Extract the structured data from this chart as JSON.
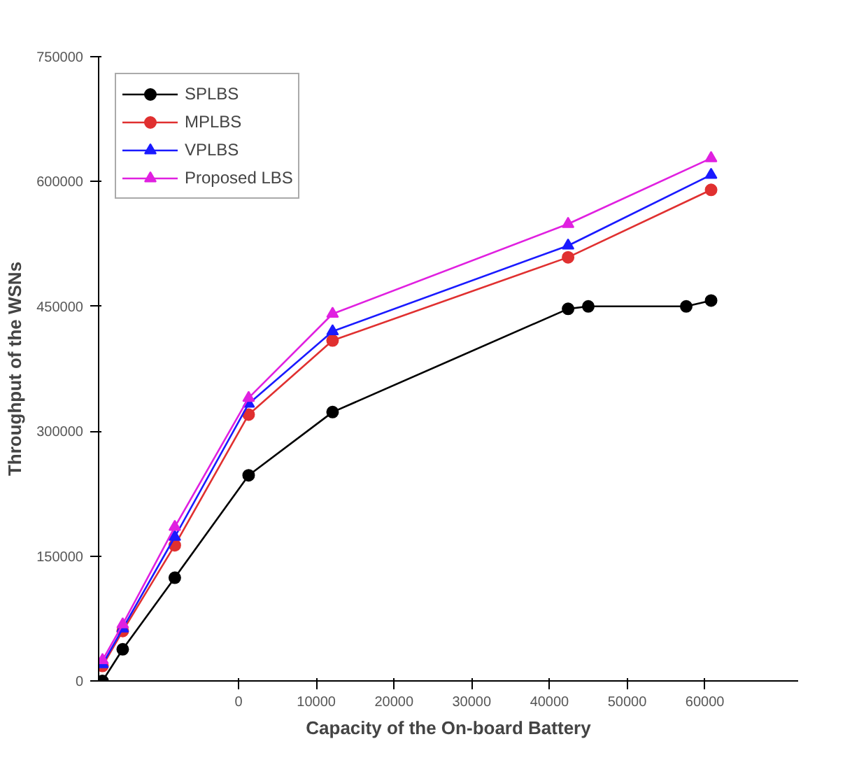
{
  "chart_data": {
    "type": "line",
    "xlabel": "Capacity of the On-board Battery",
    "ylabel": "Throughput of the WSNs",
    "xlim": [
      -18000,
      72000
    ],
    "xticks": [
      0,
      10000,
      20000,
      30000,
      40000,
      50000,
      60000
    ],
    "ylim": [
      0,
      750000
    ],
    "yticks": [
      0,
      150000,
      300000,
      450000,
      600000,
      750000
    ],
    "grid": false,
    "legend": "top left",
    "line_style": "solid",
    "series": [
      {
        "name": "SPLBS",
        "color": "#000000",
        "marker": "circle",
        "x": [
          -17500,
          -14900,
          -8200,
          1300,
          12100,
          42400,
          45000,
          57600,
          60800
        ],
        "values": [
          0,
          38000,
          124000,
          247000,
          323000,
          447000,
          450000,
          450000,
          457000
        ]
      },
      {
        "name": "MPLBS",
        "color": "#e03030",
        "marker": "circle",
        "x": [
          -17500,
          -14900,
          -8200,
          1300,
          12100,
          42400,
          60800
        ],
        "values": [
          18000,
          60000,
          163000,
          320000,
          409000,
          509000,
          590000
        ]
      },
      {
        "name": "VPLBS",
        "color": "#1a1aff",
        "marker": "triangle",
        "x": [
          -17500,
          -14900,
          -8200,
          1300,
          12100,
          42400,
          60800
        ],
        "values": [
          20000,
          63000,
          173000,
          333000,
          420000,
          523000,
          608000
        ]
      },
      {
        "name": "Proposed LBS",
        "color": "#e020e0",
        "marker": "triangle",
        "x": [
          -17500,
          -14900,
          -8200,
          1300,
          12100,
          42400,
          60800
        ],
        "values": [
          25000,
          68000,
          185000,
          340000,
          441000,
          549000,
          628000
        ]
      }
    ]
  }
}
